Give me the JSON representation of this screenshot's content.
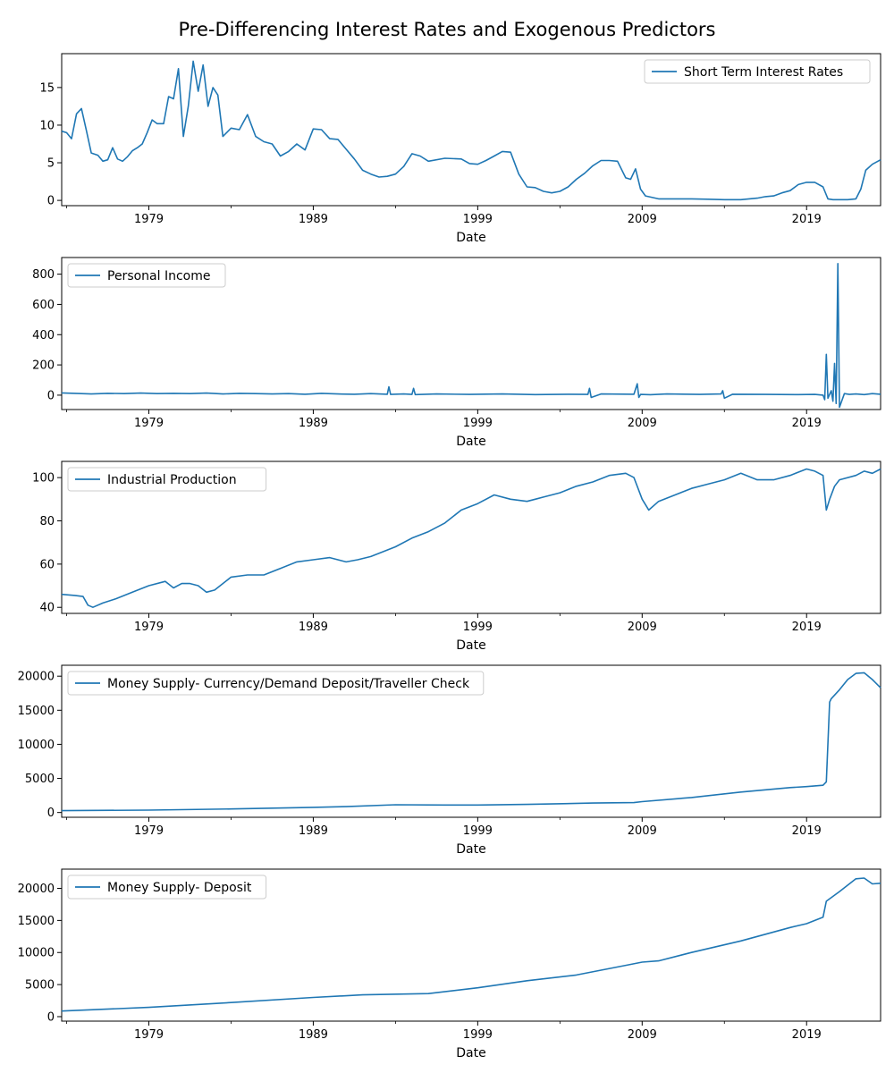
{
  "figure": {
    "title": "Pre-Differencing Interest Rates and Exogenous Predictors",
    "series_color": "#1f77b4"
  },
  "chart_data": [
    {
      "type": "line",
      "name": "Short Term Interest Rates",
      "legend_position": "top-right",
      "xlabel": "Date",
      "x_ticks": [
        "1979",
        "1989",
        "1999",
        "2009",
        "2019"
      ],
      "y_ticks": [
        "0",
        "5",
        "10",
        "15"
      ],
      "xlim": [
        1973.7,
        2023.5
      ],
      "ylim": [
        -0.7,
        19.5
      ],
      "x": [
        1973.7,
        1974.0,
        1974.3,
        1974.6,
        1974.9,
        1975.2,
        1975.5,
        1975.9,
        1976.2,
        1976.5,
        1976.8,
        1977.1,
        1977.4,
        1977.7,
        1978.0,
        1978.3,
        1978.6,
        1978.9,
        1979.2,
        1979.5,
        1979.9,
        1980.2,
        1980.5,
        1980.8,
        1981.1,
        1981.4,
        1981.7,
        1982.0,
        1982.3,
        1982.6,
        1982.9,
        1983.2,
        1983.5,
        1984.0,
        1984.5,
        1985.0,
        1985.5,
        1986.0,
        1986.5,
        1987.0,
        1987.5,
        1988.0,
        1988.5,
        1989.0,
        1989.5,
        1990.0,
        1990.5,
        1991.0,
        1991.5,
        1992.0,
        1992.5,
        1993.0,
        1993.5,
        1994.0,
        1994.5,
        1995.0,
        1995.5,
        1996.0,
        1997.0,
        1998.0,
        1998.5,
        1999.0,
        1999.5,
        2000.0,
        2000.5,
        2001.0,
        2001.5,
        2002.0,
        2002.5,
        2003.0,
        2003.5,
        2004.0,
        2004.5,
        2005.0,
        2005.5,
        2006.0,
        2006.5,
        2007.0,
        2007.5,
        2008.0,
        2008.3,
        2008.6,
        2008.9,
        2009.2,
        2010.0,
        2011.0,
        2012.0,
        2013.0,
        2014.0,
        2015.0,
        2016.0,
        2016.5,
        2017.0,
        2017.5,
        2018.0,
        2018.5,
        2019.0,
        2019.5,
        2020.0,
        2020.3,
        2020.6,
        2021.0,
        2021.5,
        2022.0,
        2022.3,
        2022.6,
        2023.0,
        2023.5
      ],
      "y": [
        9.2,
        9.0,
        8.2,
        11.5,
        12.2,
        9.3,
        6.3,
        6.0,
        5.2,
        5.4,
        7.0,
        5.5,
        5.2,
        5.8,
        6.6,
        7.0,
        7.5,
        9.0,
        10.7,
        10.2,
        10.2,
        13.8,
        13.5,
        17.5,
        8.5,
        12.5,
        18.5,
        14.5,
        18.0,
        12.5,
        15.0,
        14.0,
        8.5,
        9.6,
        9.4,
        11.4,
        8.5,
        7.8,
        7.5,
        5.9,
        6.5,
        7.5,
        6.7,
        9.5,
        9.4,
        8.2,
        8.1,
        6.8,
        5.5,
        4.0,
        3.5,
        3.1,
        3.2,
        3.5,
        4.5,
        6.2,
        5.9,
        5.2,
        5.6,
        5.5,
        4.9,
        4.8,
        5.3,
        5.9,
        6.5,
        6.4,
        3.5,
        1.8,
        1.7,
        1.2,
        1.0,
        1.2,
        1.8,
        2.8,
        3.6,
        4.6,
        5.3,
        5.3,
        5.2,
        3.0,
        2.8,
        4.2,
        1.5,
        0.6,
        0.2,
        0.2,
        0.2,
        0.15,
        0.1,
        0.1,
        0.3,
        0.5,
        0.6,
        1.0,
        1.3,
        2.1,
        2.4,
        2.4,
        1.8,
        0.2,
        0.1,
        0.1,
        0.1,
        0.2,
        1.5,
        4.0,
        4.8,
        5.4
      ]
    },
    {
      "type": "line",
      "name": "Personal Income",
      "legend_position": "top-left",
      "xlabel": "Date",
      "x_ticks": [
        "1979",
        "1989",
        "1999",
        "2009",
        "2019"
      ],
      "y_ticks": [
        "0",
        "200",
        "400",
        "600",
        "800"
      ],
      "xlim": [
        1973.7,
        2023.5
      ],
      "ylim": [
        -95,
        910
      ],
      "x": [
        1973.7,
        1974.5,
        1975.5,
        1976.5,
        1977.5,
        1978.5,
        1979.5,
        1980.5,
        1981.5,
        1982.5,
        1983.5,
        1984.5,
        1985.5,
        1986.5,
        1987.5,
        1988.5,
        1989.5,
        1990.5,
        1991.5,
        1992.5,
        1993.5,
        1993.6,
        1993.7,
        1994.5,
        1995.0,
        1995.1,
        1995.2,
        1996.5,
        1998.5,
        2000.5,
        2002.5,
        2004.5,
        2005.7,
        2005.8,
        2005.9,
        2006.5,
        2008.5,
        2008.7,
        2008.8,
        2008.9,
        2009.5,
        2010.5,
        2012.5,
        2013.8,
        2013.9,
        2014.0,
        2014.5,
        2016.5,
        2018.5,
        2019.5,
        2020.0,
        2020.1,
        2020.2,
        2020.3,
        2020.5,
        2020.6,
        2020.7,
        2020.8,
        2020.9,
        2021.0,
        2021.3,
        2021.6,
        2022.0,
        2022.5,
        2023.0,
        2023.5
      ],
      "y": [
        15,
        12,
        8,
        12,
        10,
        14,
        10,
        12,
        10,
        14,
        8,
        12,
        10,
        8,
        10,
        6,
        12,
        8,
        6,
        10,
        6,
        55,
        5,
        8,
        5,
        45,
        4,
        8,
        5,
        8,
        4,
        6,
        5,
        45,
        -15,
        8,
        6,
        75,
        -15,
        5,
        3,
        8,
        5,
        8,
        30,
        -20,
        6,
        5,
        4,
        5,
        0,
        -30,
        270,
        -20,
        30,
        -40,
        210,
        -55,
        870,
        -80,
        10,
        5,
        8,
        4,
        10,
        6
      ]
    },
    {
      "type": "line",
      "name": "Industrial Production",
      "legend_position": "top-left",
      "xlabel": "Date",
      "x_ticks": [
        "1979",
        "1989",
        "1999",
        "2009",
        "2019"
      ],
      "y_ticks": [
        "40",
        "60",
        "80",
        "100"
      ],
      "xlim": [
        1973.7,
        2023.5
      ],
      "ylim": [
        37.2,
        107.5
      ],
      "x": [
        1973.7,
        1974.5,
        1975.0,
        1975.3,
        1975.6,
        1976.2,
        1977.0,
        1978.0,
        1979.0,
        1980.0,
        1980.5,
        1981.0,
        1981.5,
        1982.0,
        1982.5,
        1983.0,
        1984.0,
        1985.0,
        1986.0,
        1987.0,
        1988.0,
        1989.0,
        1990.0,
        1991.0,
        1991.7,
        1992.5,
        1993.0,
        1994.0,
        1995.0,
        1996.0,
        1997.0,
        1998.0,
        1999.0,
        2000.0,
        2001.0,
        2002.0,
        2002.5,
        2003.0,
        2004.0,
        2005.0,
        2006.0,
        2007.0,
        2008.0,
        2008.5,
        2009.0,
        2009.4,
        2010.0,
        2011.0,
        2012.0,
        2013.0,
        2014.0,
        2015.0,
        2016.0,
        2017.0,
        2018.0,
        2019.0,
        2019.5,
        2020.0,
        2020.2,
        2020.4,
        2020.7,
        2021.0,
        2022.0,
        2022.5,
        2023.0,
        2023.5
      ],
      "y": [
        46,
        45.5,
        45,
        41,
        40,
        42,
        44,
        47,
        50,
        52,
        49,
        51,
        51,
        50,
        47,
        48,
        54,
        55,
        55,
        58,
        61,
        62,
        63,
        61,
        62,
        63.5,
        65,
        68,
        72,
        75,
        79,
        85,
        88,
        92,
        90,
        89,
        90,
        91,
        93,
        96,
        98,
        101,
        102,
        100,
        90,
        85,
        89,
        92,
        95,
        97,
        99,
        102,
        99,
        99,
        101,
        104,
        103,
        101,
        85,
        90,
        96,
        99,
        101,
        103,
        102,
        104
      ]
    },
    {
      "type": "line",
      "name": "Money Supply- Currency/Demand Deposit/Traveller Check",
      "legend_position": "top-left",
      "xlabel": "Date",
      "x_ticks": [
        "1979",
        "1989",
        "1999",
        "2009",
        "2019"
      ],
      "y_ticks": [
        "0",
        "5000",
        "10000",
        "15000",
        "20000"
      ],
      "xlim": [
        1973.7,
        2023.5
      ],
      "ylim": [
        -700,
        21600
      ],
      "x": [
        1973.7,
        1979.0,
        1984.0,
        1989.0,
        1991.0,
        1994.0,
        1997.0,
        1999.0,
        2002.0,
        2006.0,
        2008.5,
        2009.0,
        2012.0,
        2015.0,
        2018.0,
        2019.0,
        2020.0,
        2020.2,
        2020.4,
        2020.5,
        2021.0,
        2021.5,
        2022.0,
        2022.5,
        2023.0,
        2023.5
      ],
      "y": [
        270,
        350,
        520,
        760,
        860,
        1130,
        1100,
        1100,
        1190,
        1380,
        1450,
        1600,
        2200,
        3000,
        3650,
        3800,
        4000,
        4500,
        16200,
        16700,
        18000,
        19500,
        20400,
        20500,
        19500,
        18300
      ]
    },
    {
      "type": "line",
      "name": "Money Supply- Deposit",
      "legend_position": "top-left",
      "xlabel": "Date",
      "x_ticks": [
        "1979",
        "1989",
        "1999",
        "2009",
        "2019"
      ],
      "y_ticks": [
        "0",
        "5000",
        "10000",
        "15000",
        "20000"
      ],
      "xlim": [
        1973.7,
        2023.5
      ],
      "ylim": [
        -700,
        23000
      ],
      "x": [
        1973.7,
        1979.0,
        1984.0,
        1989.0,
        1992.0,
        1996.0,
        1999.0,
        2002.0,
        2005.0,
        2008.0,
        2009.0,
        2010.0,
        2012.0,
        2015.0,
        2018.0,
        2019.0,
        2020.0,
        2020.2,
        2021.0,
        2022.0,
        2022.5,
        2023.0,
        2023.5
      ],
      "y": [
        870,
        1450,
        2200,
        3000,
        3400,
        3600,
        4500,
        5600,
        6500,
        8000,
        8500,
        8700,
        10000,
        11800,
        13900,
        14500,
        15500,
        18000,
        19500,
        21500,
        21600,
        20700,
        20800
      ]
    }
  ]
}
